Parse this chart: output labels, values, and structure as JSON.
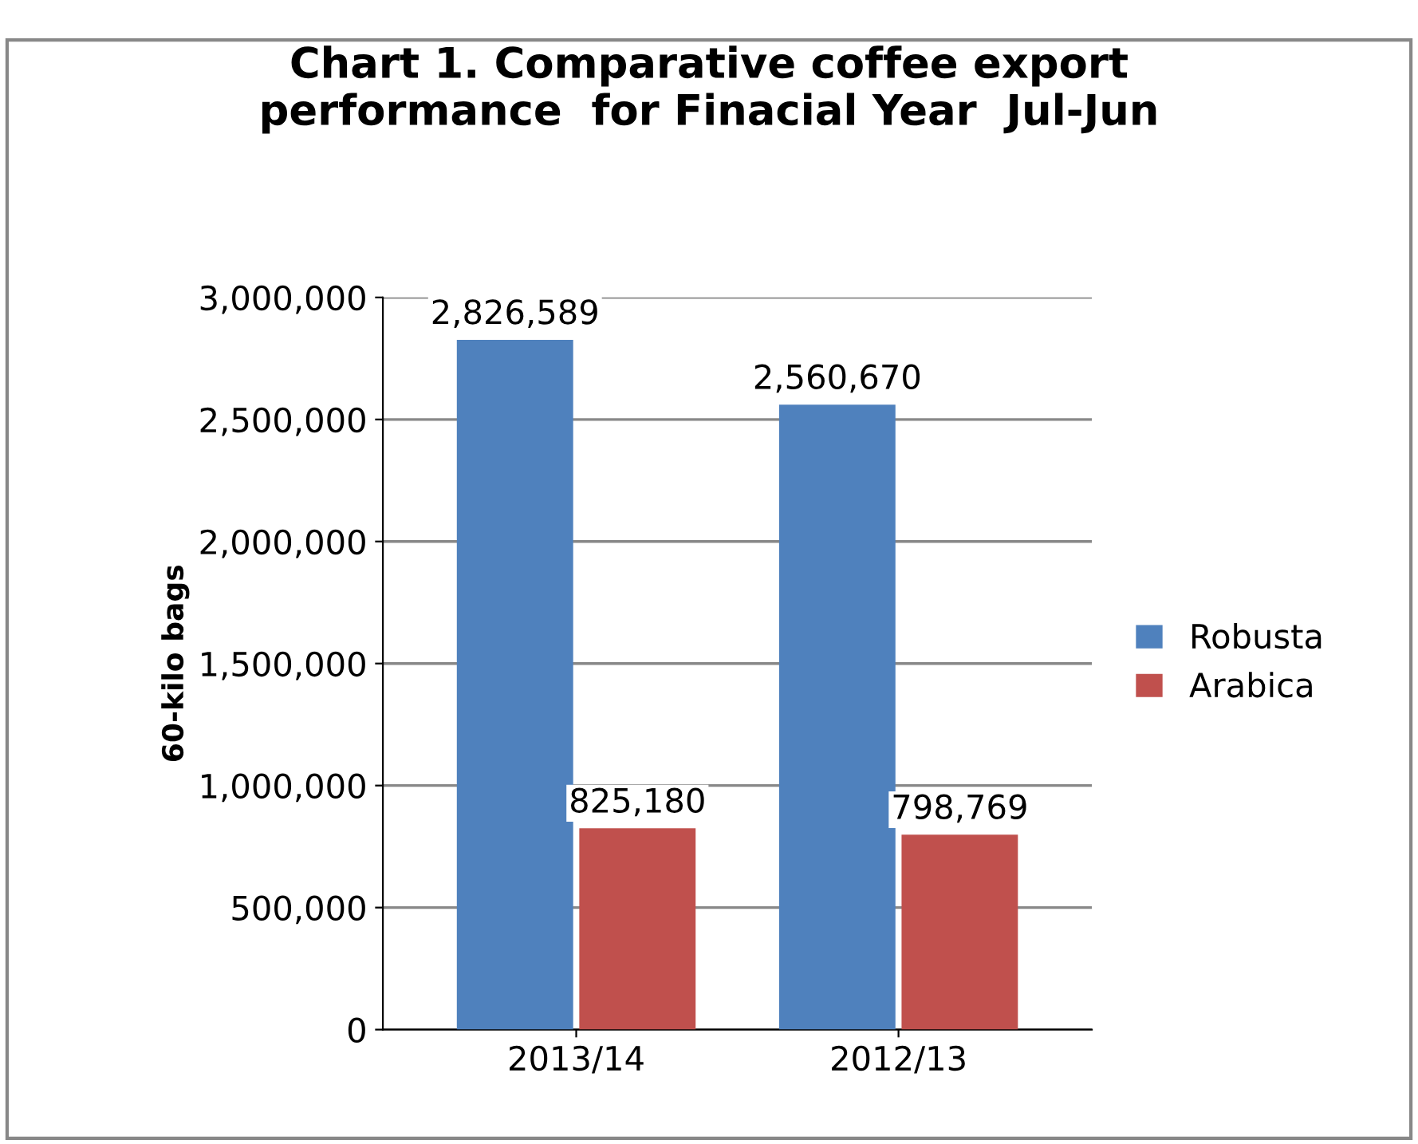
{
  "chart_data": {
    "type": "bar",
    "title": "Chart 1. Comparative coffee export\nperformance  for Finacial Year  Jul-Jun",
    "ylabel": "60-kilo bags",
    "categories": [
      "2013/14",
      "2012/13"
    ],
    "series": [
      {
        "name": "Robusta",
        "color": "#4f81bd",
        "values": [
          2826589,
          2560670
        ]
      },
      {
        "name": "Arabica",
        "color": "#c0504d",
        "values": [
          825180,
          798769
        ]
      }
    ],
    "ylim": [
      0,
      3000000
    ],
    "yticks": [
      {
        "value": 0,
        "label": "0"
      },
      {
        "value": 500000,
        "label": "500,000"
      },
      {
        "value": 1000000,
        "label": "1,000,000"
      },
      {
        "value": 1500000,
        "label": "1,500,000"
      },
      {
        "value": 2000000,
        "label": "2,000,000"
      },
      {
        "value": 2500000,
        "label": "2,500,000"
      },
      {
        "value": 3000000,
        "label": "3,000,000"
      }
    ],
    "value_labels": [
      [
        "2,826,589",
        "2,560,670"
      ],
      [
        "825,180",
        "798,769"
      ]
    ],
    "grid": "y",
    "legend": "right"
  }
}
